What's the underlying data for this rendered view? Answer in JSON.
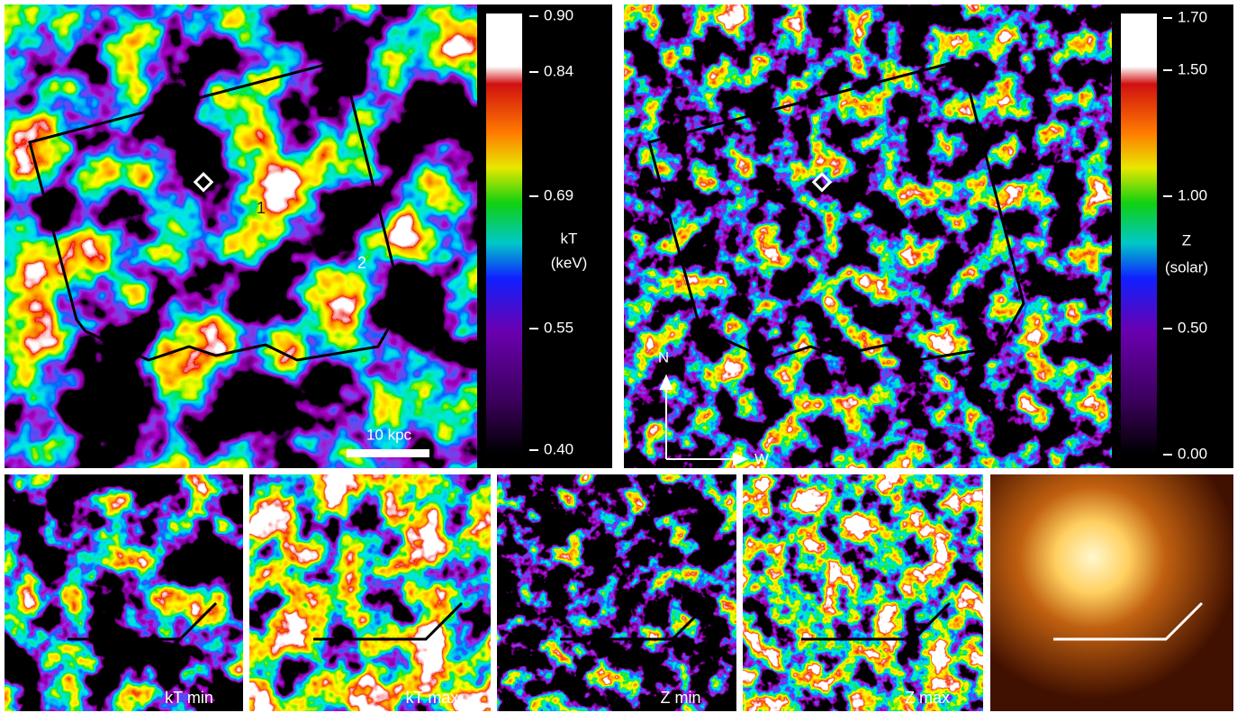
{
  "panels": {
    "kt_map": {
      "colorbar": {
        "ticks": [
          "0.90",
          "0.84",
          "0.69",
          "0.55",
          "0.40"
        ],
        "label": "kT",
        "unit": "(keV)"
      },
      "regions": [
        "1",
        "2"
      ],
      "scale_bar": "10 kpc"
    },
    "z_map": {
      "colorbar": {
        "ticks": [
          "1.70",
          "1.50",
          "1.00",
          "0.50",
          "0.00"
        ],
        "label": "Z",
        "unit": "(solar)"
      },
      "compass": [
        "N",
        "W"
      ]
    }
  },
  "small_panels": [
    "kT min",
    "kT max",
    "Z min",
    "Z max"
  ]
}
